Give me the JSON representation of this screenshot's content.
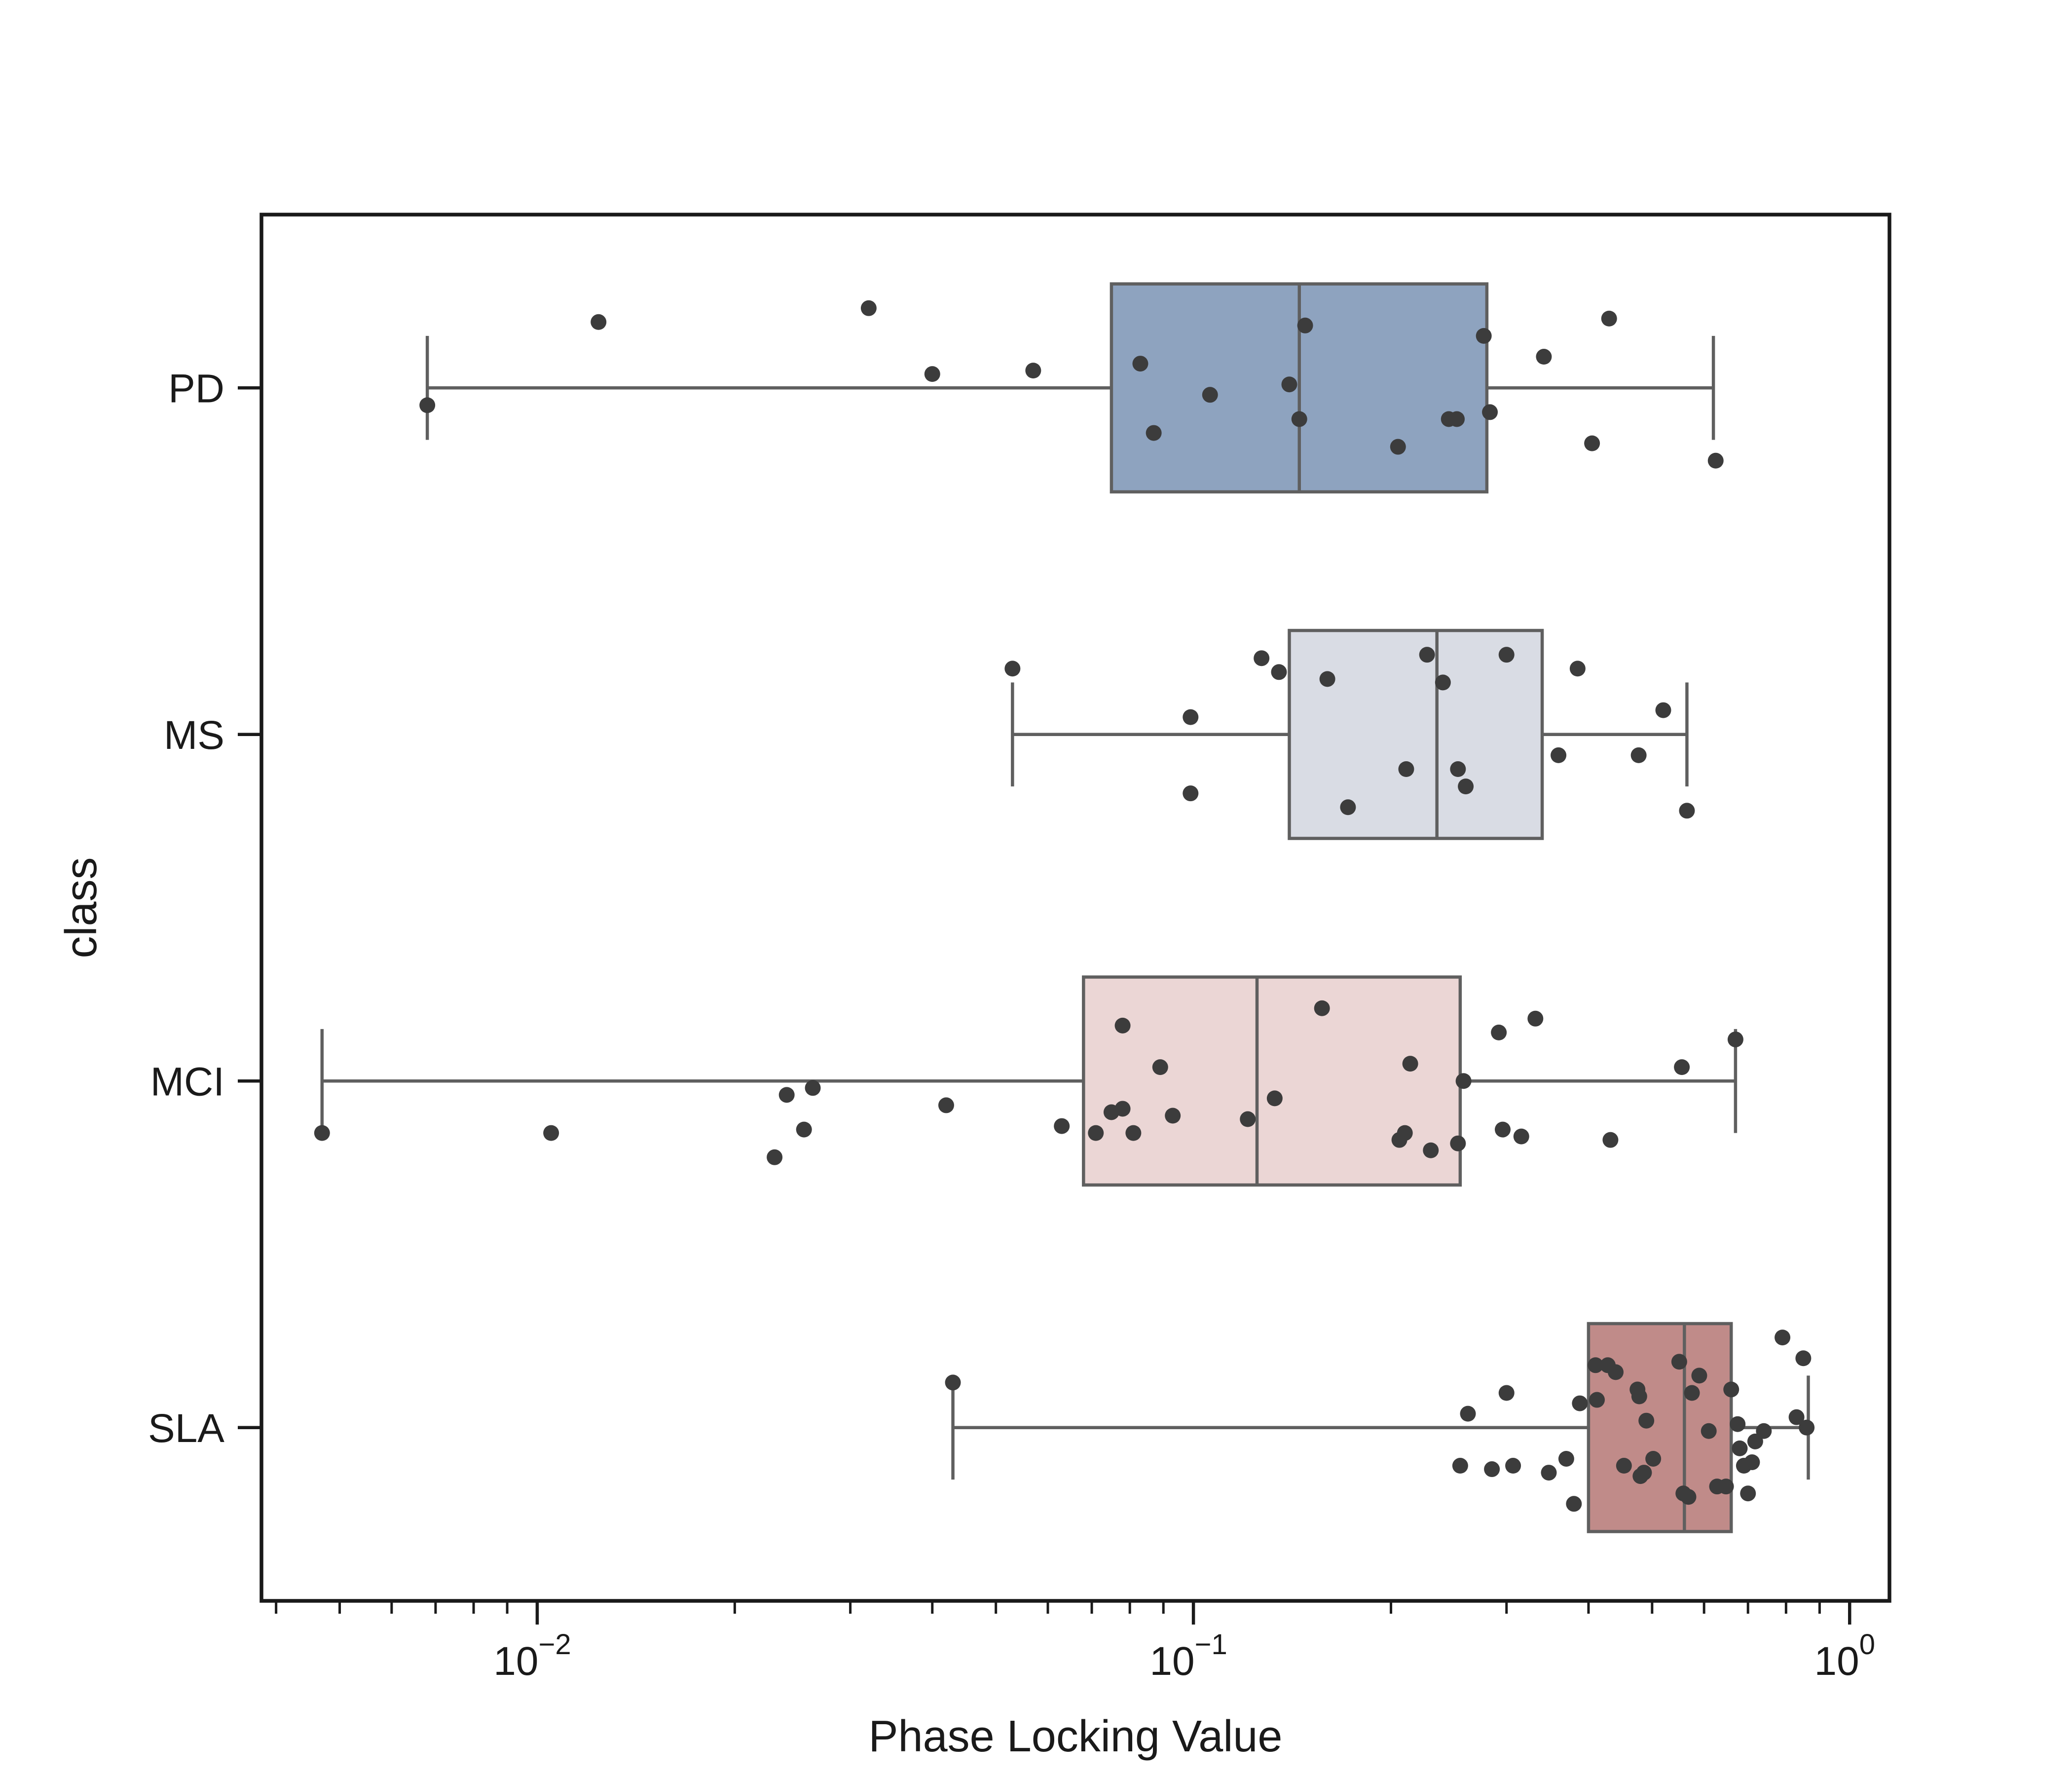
{
  "chart_data": {
    "type": "box",
    "orientation": "horizontal",
    "xlabel": "Phase Locking Value",
    "ylabel": "class",
    "x_scale": "log",
    "xlim": [
      0.0038,
      1.15
    ],
    "x_major_ticks": [
      {
        "value": 0.01,
        "base": "10",
        "exp": "−2"
      },
      {
        "value": 0.1,
        "base": "10",
        "exp": "−1"
      },
      {
        "value": 1.0,
        "base": "10",
        "exp": "0"
      }
    ],
    "x_minor_ticks": [
      0.004,
      0.005,
      0.006,
      0.007,
      0.008,
      0.009,
      0.02,
      0.03,
      0.04,
      0.05,
      0.06,
      0.07,
      0.08,
      0.09,
      0.2,
      0.3,
      0.4,
      0.5,
      0.6,
      0.7,
      0.8,
      0.9
    ],
    "grid": false,
    "legend": false,
    "categories": [
      "PD",
      "MS",
      "MCI",
      "SLA"
    ],
    "boxes": [
      {
        "category": "PD",
        "color": "#8ea3bf",
        "whisker_low": 0.0068,
        "q1": 0.075,
        "median": 0.145,
        "q3": 0.28,
        "whisker_high": 0.62,
        "points": [
          {
            "x": 0.0068,
            "jitter": -0.05
          },
          {
            "x": 0.0124,
            "jitter": 0.19
          },
          {
            "x": 0.032,
            "jitter": 0.23
          },
          {
            "x": 0.04,
            "jitter": 0.04
          },
          {
            "x": 0.057,
            "jitter": 0.05
          },
          {
            "x": 0.083,
            "jitter": 0.07
          },
          {
            "x": 0.087,
            "jitter": -0.13
          },
          {
            "x": 0.106,
            "jitter": -0.02
          },
          {
            "x": 0.14,
            "jitter": 0.01
          },
          {
            "x": 0.145,
            "jitter": -0.09
          },
          {
            "x": 0.148,
            "jitter": 0.18
          },
          {
            "x": 0.205,
            "jitter": -0.17
          },
          {
            "x": 0.245,
            "jitter": -0.09
          },
          {
            "x": 0.252,
            "jitter": -0.09
          },
          {
            "x": 0.277,
            "jitter": 0.15
          },
          {
            "x": 0.283,
            "jitter": -0.07
          },
          {
            "x": 0.342,
            "jitter": 0.09
          },
          {
            "x": 0.405,
            "jitter": -0.16
          },
          {
            "x": 0.43,
            "jitter": 0.2
          },
          {
            "x": 0.625,
            "jitter": -0.21
          }
        ]
      },
      {
        "category": "MS",
        "color": "#d9dce4",
        "whisker_low": 0.053,
        "q1": 0.14,
        "median": 0.235,
        "q3": 0.34,
        "whisker_high": 0.565,
        "points": [
          {
            "x": 0.053,
            "jitter": 0.19
          },
          {
            "x": 0.099,
            "jitter": 0.05
          },
          {
            "x": 0.099,
            "jitter": -0.17
          },
          {
            "x": 0.127,
            "jitter": 0.22
          },
          {
            "x": 0.135,
            "jitter": 0.18
          },
          {
            "x": 0.16,
            "jitter": 0.16
          },
          {
            "x": 0.172,
            "jitter": -0.21
          },
          {
            "x": 0.211,
            "jitter": -0.1
          },
          {
            "x": 0.227,
            "jitter": 0.23
          },
          {
            "x": 0.24,
            "jitter": 0.15
          },
          {
            "x": 0.253,
            "jitter": -0.1
          },
          {
            "x": 0.26,
            "jitter": -0.15
          },
          {
            "x": 0.3,
            "jitter": 0.23
          },
          {
            "x": 0.36,
            "jitter": -0.06
          },
          {
            "x": 0.385,
            "jitter": 0.19
          },
          {
            "x": 0.477,
            "jitter": -0.06
          },
          {
            "x": 0.52,
            "jitter": 0.07
          },
          {
            "x": 0.565,
            "jitter": -0.22
          }
        ]
      },
      {
        "category": "MCI",
        "color": "#ebd6d5",
        "whisker_low": 0.0047,
        "q1": 0.068,
        "median": 0.125,
        "q3": 0.255,
        "whisker_high": 0.67,
        "points": [
          {
            "x": 0.0047,
            "jitter": -0.15
          },
          {
            "x": 0.0105,
            "jitter": -0.15
          },
          {
            "x": 0.023,
            "jitter": -0.22
          },
          {
            "x": 0.024,
            "jitter": -0.04
          },
          {
            "x": 0.0255,
            "jitter": -0.14
          },
          {
            "x": 0.0263,
            "jitter": -0.02
          },
          {
            "x": 0.042,
            "jitter": -0.07
          },
          {
            "x": 0.063,
            "jitter": -0.13
          },
          {
            "x": 0.071,
            "jitter": -0.15
          },
          {
            "x": 0.075,
            "jitter": -0.09
          },
          {
            "x": 0.078,
            "jitter": 0.16
          },
          {
            "x": 0.078,
            "jitter": -0.08
          },
          {
            "x": 0.081,
            "jitter": -0.15
          },
          {
            "x": 0.089,
            "jitter": 0.04
          },
          {
            "x": 0.093,
            "jitter": -0.1
          },
          {
            "x": 0.121,
            "jitter": -0.11
          },
          {
            "x": 0.133,
            "jitter": -0.05
          },
          {
            "x": 0.157,
            "jitter": 0.21
          },
          {
            "x": 0.206,
            "jitter": -0.17
          },
          {
            "x": 0.21,
            "jitter": -0.15
          },
          {
            "x": 0.214,
            "jitter": 0.05
          },
          {
            "x": 0.23,
            "jitter": -0.2
          },
          {
            "x": 0.253,
            "jitter": -0.18
          },
          {
            "x": 0.258,
            "jitter": 0.0
          },
          {
            "x": 0.292,
            "jitter": 0.14
          },
          {
            "x": 0.296,
            "jitter": -0.14
          },
          {
            "x": 0.316,
            "jitter": -0.16
          },
          {
            "x": 0.332,
            "jitter": 0.18
          },
          {
            "x": 0.432,
            "jitter": -0.17
          },
          {
            "x": 0.555,
            "jitter": 0.04
          },
          {
            "x": 0.67,
            "jitter": 0.12
          }
        ]
      },
      {
        "category": "SLA",
        "color": "#c08b89",
        "whisker_low": 0.043,
        "q1": 0.4,
        "median": 0.56,
        "q3": 0.66,
        "whisker_high": 0.865,
        "points": [
          {
            "x": 0.043,
            "jitter": 0.13
          },
          {
            "x": 0.255,
            "jitter": -0.11
          },
          {
            "x": 0.262,
            "jitter": 0.04
          },
          {
            "x": 0.285,
            "jitter": -0.12
          },
          {
            "x": 0.3,
            "jitter": 0.1
          },
          {
            "x": 0.307,
            "jitter": -0.11
          },
          {
            "x": 0.348,
            "jitter": -0.13
          },
          {
            "x": 0.37,
            "jitter": -0.09
          },
          {
            "x": 0.38,
            "jitter": -0.22
          },
          {
            "x": 0.388,
            "jitter": 0.07
          },
          {
            "x": 0.41,
            "jitter": 0.18
          },
          {
            "x": 0.412,
            "jitter": 0.08
          },
          {
            "x": 0.428,
            "jitter": 0.18
          },
          {
            "x": 0.44,
            "jitter": 0.16
          },
          {
            "x": 0.453,
            "jitter": -0.11
          },
          {
            "x": 0.475,
            "jitter": 0.11
          },
          {
            "x": 0.478,
            "jitter": 0.09
          },
          {
            "x": 0.48,
            "jitter": -0.14
          },
          {
            "x": 0.486,
            "jitter": -0.13
          },
          {
            "x": 0.49,
            "jitter": 0.02
          },
          {
            "x": 0.502,
            "jitter": -0.09
          },
          {
            "x": 0.55,
            "jitter": 0.19
          },
          {
            "x": 0.558,
            "jitter": -0.19
          },
          {
            "x": 0.568,
            "jitter": -0.2
          },
          {
            "x": 0.575,
            "jitter": 0.1
          },
          {
            "x": 0.59,
            "jitter": 0.15
          },
          {
            "x": 0.61,
            "jitter": -0.01
          },
          {
            "x": 0.628,
            "jitter": -0.17
          },
          {
            "x": 0.648,
            "jitter": -0.17
          },
          {
            "x": 0.66,
            "jitter": 0.11
          },
          {
            "x": 0.675,
            "jitter": 0.01
          },
          {
            "x": 0.68,
            "jitter": -0.06
          },
          {
            "x": 0.69,
            "jitter": -0.11
          },
          {
            "x": 0.7,
            "jitter": -0.19
          },
          {
            "x": 0.71,
            "jitter": -0.1
          },
          {
            "x": 0.718,
            "jitter": -0.04
          },
          {
            "x": 0.74,
            "jitter": -0.01
          },
          {
            "x": 0.79,
            "jitter": 0.26
          },
          {
            "x": 0.83,
            "jitter": 0.03
          },
          {
            "x": 0.85,
            "jitter": 0.2
          },
          {
            "x": 0.86,
            "jitter": 0.0
          }
        ]
      }
    ],
    "point_color": "#3c3c3c",
    "edge_color": "#5f5f5f",
    "axis_color": "#1a1a1a"
  }
}
